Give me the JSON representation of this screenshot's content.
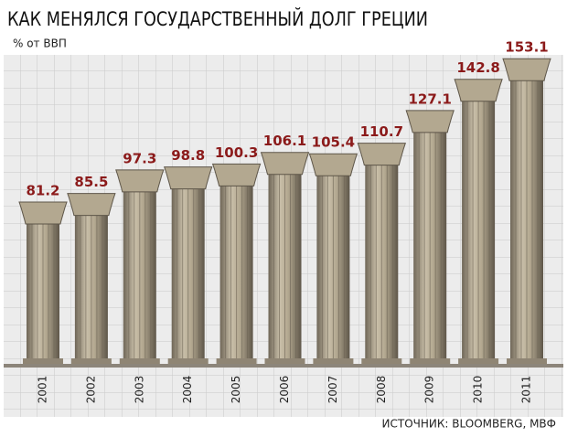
{
  "chart_data": {
    "type": "bar",
    "title": "КАК МЕНЯЛСЯ ГОСУДАРСТВЕННЫЙ ДОЛГ ГРЕЦИИ",
    "subtitle": "% от ВВП",
    "source": "ИСТОЧНИК: BLOOMBERG, МВФ",
    "categories": [
      "2001",
      "2002",
      "2003",
      "2004",
      "2005",
      "2006",
      "2007",
      "2008",
      "2009",
      "2010",
      "2011"
    ],
    "values": [
      81.2,
      85.5,
      97.3,
      98.8,
      100.3,
      106.1,
      105.4,
      110.7,
      127.1,
      142.8,
      153.1
    ],
    "color": "#b3a890",
    "label_color": "#8b1a1a"
  }
}
